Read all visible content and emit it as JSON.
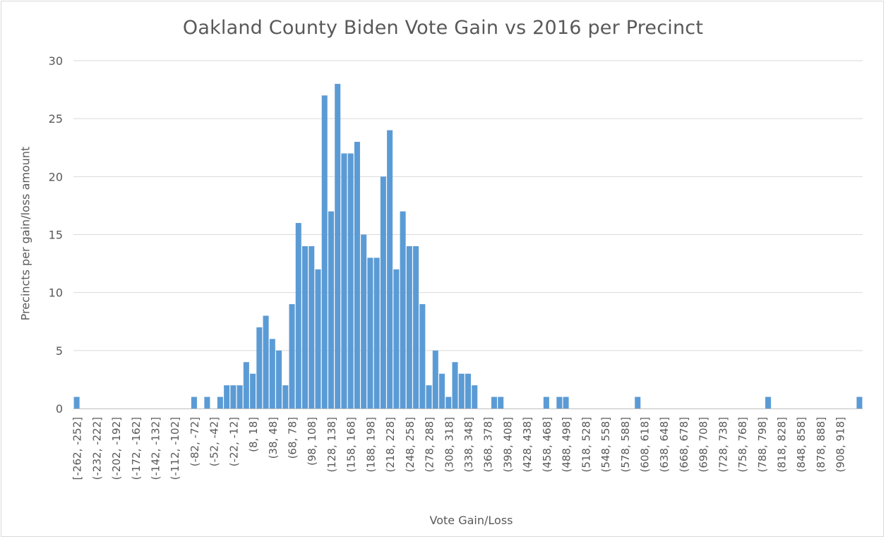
{
  "chart_data": {
    "type": "bar",
    "title": "Oakland County Biden Vote Gain vs 2016 per Precinct",
    "xlabel": "Vote Gain/Loss",
    "ylabel": "Precincts per gain/loss amount",
    "ylim": [
      0,
      30
    ],
    "yticks": [
      0,
      5,
      10,
      15,
      20,
      25,
      30
    ],
    "grid": true,
    "legend": "none",
    "bar_color": "#5b9bd5",
    "bin_width": 10,
    "first_bin_start": -262,
    "values": [
      1,
      0,
      0,
      0,
      0,
      0,
      0,
      0,
      0,
      0,
      0,
      0,
      0,
      0,
      0,
      0,
      0,
      0,
      1,
      0,
      1,
      0,
      1,
      2,
      2,
      2,
      4,
      3,
      7,
      8,
      6,
      5,
      2,
      9,
      16,
      14,
      14,
      12,
      27,
      17,
      28,
      22,
      22,
      23,
      15,
      13,
      13,
      20,
      24,
      12,
      17,
      14,
      14,
      9,
      2,
      5,
      3,
      1,
      4,
      3,
      3,
      2,
      0,
      0,
      1,
      1,
      0,
      0,
      0,
      0,
      0,
      0,
      1,
      0,
      1,
      1,
      0,
      0,
      0,
      0,
      0,
      0,
      0,
      0,
      0,
      0,
      1,
      0,
      0,
      0,
      0,
      0,
      0,
      0,
      0,
      0,
      0,
      0,
      0,
      0,
      0,
      0,
      0,
      0,
      0,
      0,
      1,
      0,
      0,
      0,
      0,
      0,
      0,
      0,
      0,
      0,
      0,
      0,
      0,
      0,
      1
    ],
    "tick_labels": [
      "[-262, -252]",
      "(-232, -222]",
      "(-202, -192]",
      "(-172, -162]",
      "(-142, -132]",
      "(-112, -102]",
      "(-82, -72]",
      "(-52, -42]",
      "(-22, -12]",
      "(8, 18]",
      "(38, 48]",
      "(68, 78]",
      "(98, 108]",
      "(128, 138]",
      "(158, 168]",
      "(188, 198]",
      "(218, 228]",
      "(248, 258]",
      "(278, 288]",
      "(308, 318]",
      "(338, 348]",
      "(368, 378]",
      "(398, 408]",
      "(428, 438]",
      "(458, 468]",
      "(488, 498]",
      "(518, 528]",
      "(548, 558]",
      "(578, 588]",
      "(608, 618]",
      "(638, 648]",
      "(668, 678]",
      "(698, 708]",
      "(728, 738]",
      "(758, 768]",
      "(788, 798]",
      "(818, 828]",
      "(848, 858]",
      "(878, 888]",
      "(908, 918]"
    ],
    "tick_label_every": 3
  }
}
